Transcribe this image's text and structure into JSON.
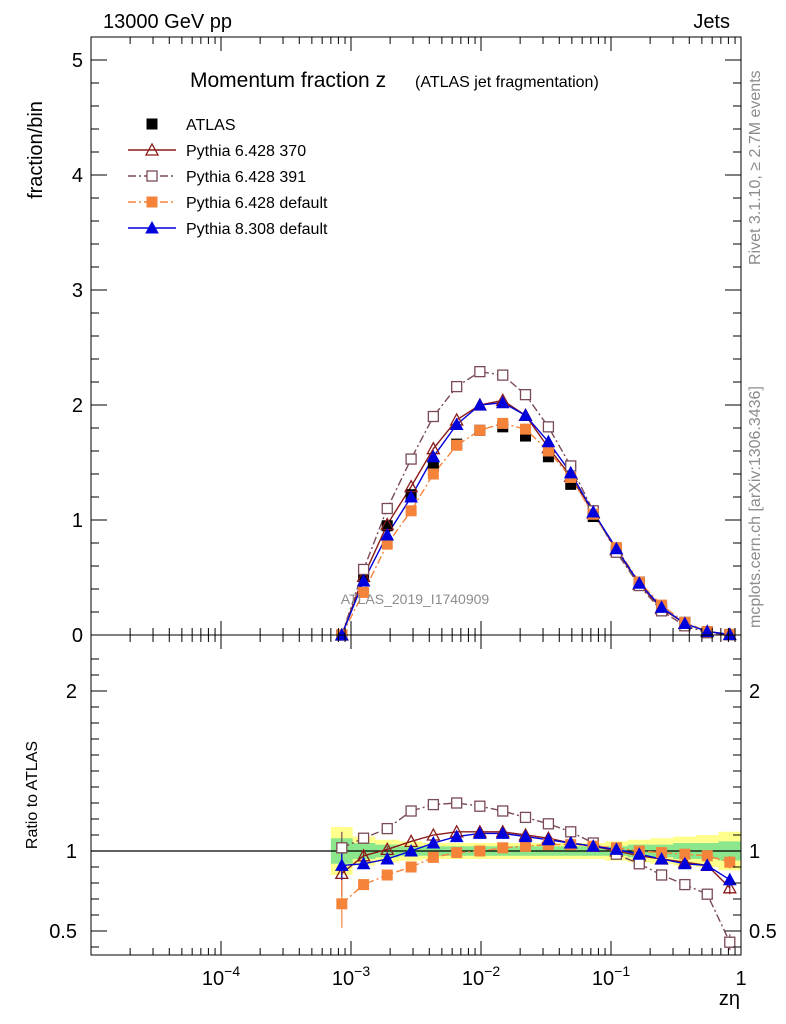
{
  "header": {
    "left": "13000 GeV pp",
    "right": "Jets",
    "side_top": "Rivet 3.1.10, ≥ 2.7M events",
    "side_bottom": "mcplots.cern.ch [arXiv:1306.3436]"
  },
  "chart_data": [
    {
      "type": "line",
      "title_main": "Momentum fraction z",
      "title_sub": "(ATLAS jet fragmentation)",
      "watermark": "ATLAS_2019_I1740909",
      "ylabel": "fraction/bin",
      "xscale": "log",
      "xlim": [
        1e-05,
        1
      ],
      "ylim": [
        0,
        5.2
      ],
      "yticks": [
        0,
        1,
        2,
        3,
        4,
        5
      ],
      "x": [
        0.00085,
        0.00125,
        0.0019,
        0.0029,
        0.0043,
        0.0065,
        0.0098,
        0.0147,
        0.022,
        0.033,
        0.049,
        0.073,
        0.11,
        0.165,
        0.245,
        0.37,
        0.55,
        0.82
      ],
      "legend_position": "top-left",
      "series": [
        {
          "name": "ATLAS",
          "color": "#000000",
          "marker": "square-filled",
          "line": "none",
          "values": [
            0.0,
            0.52,
            0.95,
            1.22,
            1.47,
            1.66,
            1.78,
            1.81,
            1.73,
            1.55,
            1.31,
            1.03,
            0.74,
            0.46,
            0.25,
            0.11,
            0.03,
            0.005
          ]
        },
        {
          "name": "Pythia 6.428 370",
          "color": "#8b1a1a",
          "marker": "triangle-open",
          "line": "solid",
          "values": [
            0.0,
            0.51,
            0.96,
            1.29,
            1.62,
            1.87,
            2.0,
            2.04,
            1.91,
            1.63,
            1.38,
            1.06,
            0.74,
            0.44,
            0.23,
            0.1,
            0.03,
            0.004
          ]
        },
        {
          "name": "Pythia 6.428 391",
          "color": "#7a4a55",
          "marker": "square-open",
          "line": "dashdot",
          "values": [
            0.0,
            0.57,
            1.1,
            1.53,
            1.9,
            2.16,
            2.29,
            2.26,
            2.09,
            1.81,
            1.47,
            1.08,
            0.72,
            0.43,
            0.21,
            0.08,
            0.02,
            0.002
          ]
        },
        {
          "name": "Pythia 6.428 default",
          "color": "#f5843a",
          "marker": "square-filled",
          "line": "dashdot",
          "values": [
            0.0,
            0.37,
            0.79,
            1.08,
            1.4,
            1.65,
            1.78,
            1.84,
            1.79,
            1.6,
            1.37,
            1.05,
            0.76,
            0.46,
            0.26,
            0.11,
            0.03,
            0.005
          ]
        },
        {
          "name": "Pythia 8.308 default",
          "color": "#0000dd",
          "marker": "triangle-filled",
          "line": "solid",
          "values": [
            0.0,
            0.47,
            0.87,
            1.2,
            1.55,
            1.83,
            2.0,
            2.02,
            1.91,
            1.68,
            1.41,
            1.07,
            0.75,
            0.45,
            0.24,
            0.1,
            0.03,
            0.004
          ]
        }
      ]
    },
    {
      "type": "line",
      "ylabel": "Ratio to ATLAS",
      "xlabel": "zη",
      "xscale": "log",
      "xlim": [
        1e-05,
        1
      ],
      "ylim": [
        0.35,
        2.35
      ],
      "yticks": [
        0.5,
        1,
        2
      ],
      "xticks": [
        0.0001,
        0.001,
        0.01,
        0.1,
        1
      ],
      "x": [
        0.00085,
        0.00125,
        0.0019,
        0.0029,
        0.0043,
        0.0065,
        0.0098,
        0.0147,
        0.022,
        0.033,
        0.049,
        0.073,
        0.11,
        0.165,
        0.245,
        0.37,
        0.55,
        0.82
      ],
      "band_yellow": [
        0.15,
        0.09,
        0.07,
        0.06,
        0.05,
        0.05,
        0.05,
        0.05,
        0.05,
        0.05,
        0.05,
        0.05,
        0.06,
        0.07,
        0.08,
        0.09,
        0.1,
        0.12
      ],
      "band_green": [
        0.08,
        0.05,
        0.04,
        0.03,
        0.03,
        0.03,
        0.03,
        0.03,
        0.03,
        0.03,
        0.03,
        0.03,
        0.03,
        0.04,
        0.04,
        0.05,
        0.05,
        0.06
      ],
      "series": [
        {
          "name": "Pythia 6.428 370",
          "color": "#8b1a1a",
          "marker": "triangle-open",
          "line": "solid",
          "values": [
            0.86,
            0.97,
            1.01,
            1.06,
            1.1,
            1.12,
            1.12,
            1.12,
            1.1,
            1.08,
            1.05,
            1.03,
            1.0,
            0.97,
            0.95,
            0.93,
            0.91,
            0.77
          ],
          "errors": [
            0.14,
            0.03,
            0.02,
            0.01,
            0.01,
            0.01,
            0.01,
            0.01,
            0.01,
            0.01,
            0.01,
            0.01,
            0.01,
            0.01,
            0.01,
            0.01,
            0.02,
            0.04
          ]
        },
        {
          "name": "Pythia 6.428 391",
          "color": "#7a4a55",
          "marker": "square-open",
          "line": "dashdot",
          "values": [
            1.02,
            1.08,
            1.14,
            1.25,
            1.29,
            1.3,
            1.28,
            1.25,
            1.21,
            1.17,
            1.12,
            1.05,
            0.98,
            0.92,
            0.85,
            0.79,
            0.73,
            0.43
          ],
          "errors": [
            0.1,
            0.03,
            0.02,
            0.01,
            0.01,
            0.01,
            0.01,
            0.01,
            0.01,
            0.01,
            0.01,
            0.01,
            0.01,
            0.01,
            0.01,
            0.01,
            0.02,
            0.05
          ]
        },
        {
          "name": "Pythia 6.428 default",
          "color": "#f5843a",
          "marker": "square-filled",
          "line": "dashdot",
          "values": [
            0.67,
            0.79,
            0.85,
            0.9,
            0.96,
            0.99,
            1.0,
            1.02,
            1.03,
            1.04,
            1.04,
            1.03,
            1.02,
            1.0,
            0.99,
            0.98,
            0.97,
            0.93
          ],
          "errors": [
            0.15,
            0.02,
            0.02,
            0.01,
            0.01,
            0.01,
            0.01,
            0.01,
            0.01,
            0.01,
            0.01,
            0.01,
            0.01,
            0.01,
            0.01,
            0.01,
            0.02,
            0.04
          ]
        },
        {
          "name": "Pythia 8.308 default",
          "color": "#0000dd",
          "marker": "triangle-filled",
          "line": "solid",
          "values": [
            0.91,
            0.92,
            0.95,
            1.0,
            1.05,
            1.09,
            1.11,
            1.11,
            1.09,
            1.07,
            1.05,
            1.03,
            1.01,
            0.98,
            0.95,
            0.92,
            0.91,
            0.82
          ],
          "errors": [
            0.09,
            0.02,
            0.02,
            0.01,
            0.01,
            0.01,
            0.01,
            0.01,
            0.01,
            0.01,
            0.01,
            0.01,
            0.01,
            0.01,
            0.01,
            0.01,
            0.02,
            0.04
          ]
        }
      ]
    }
  ]
}
